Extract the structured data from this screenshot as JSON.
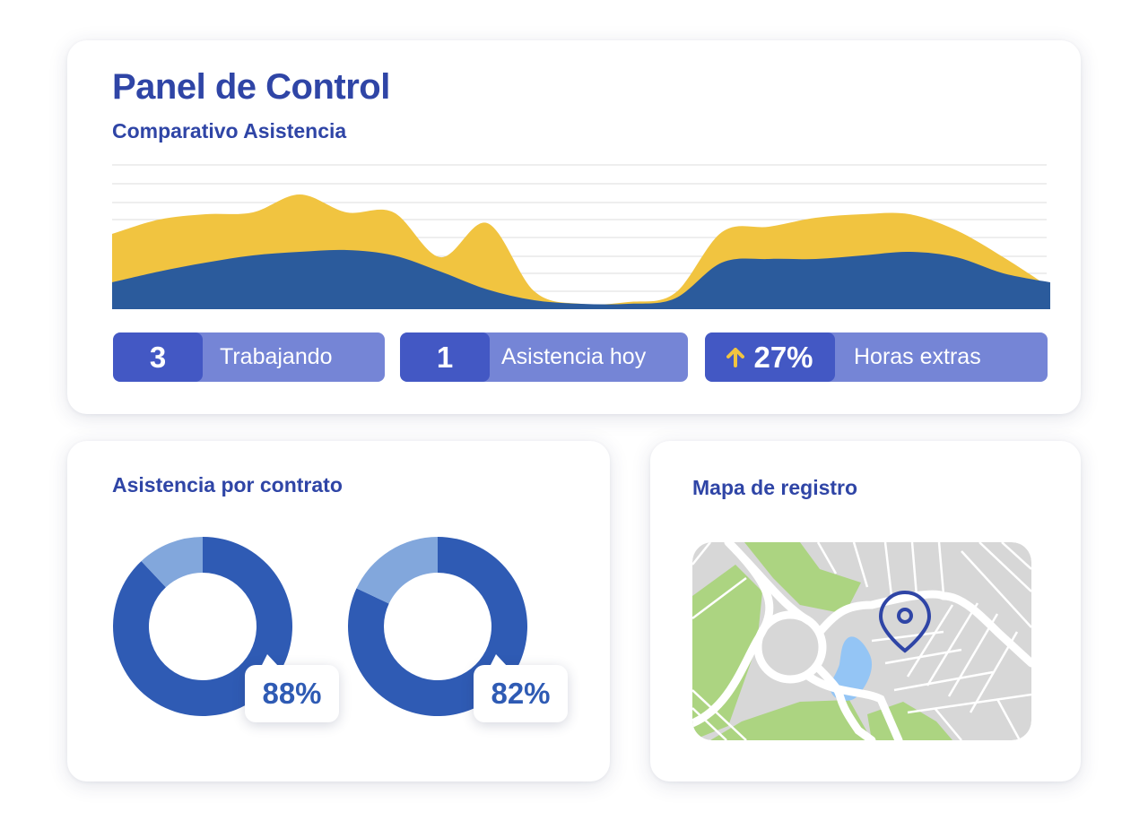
{
  "dashboard": {
    "title": "Panel de Control",
    "chart_title": "Comparativo Asistencia"
  },
  "chart_data": {
    "type": "area",
    "title": "Comparativo Asistencia",
    "x": [
      0,
      1,
      2,
      3,
      4,
      5,
      6,
      7,
      8,
      9,
      10,
      11,
      12,
      13,
      14,
      15,
      16,
      17,
      18,
      19,
      20
    ],
    "series": [
      {
        "color": "#f1c440",
        "values": [
          4.2,
          5.0,
          5.3,
          5.4,
          6.4,
          5.4,
          5.4,
          2.9,
          4.8,
          1.0,
          0.3,
          0.4,
          0.9,
          4.3,
          4.6,
          5.1,
          5.3,
          5.3,
          4.4,
          2.9,
          1.2
        ]
      },
      {
        "color": "#2b5b9c",
        "values": [
          1.5,
          2.1,
          2.6,
          3.0,
          3.2,
          3.3,
          3.0,
          2.1,
          1.1,
          0.5,
          0.3,
          0.3,
          0.6,
          2.6,
          2.8,
          2.8,
          3.0,
          3.2,
          2.9,
          2.0,
          1.5
        ]
      }
    ],
    "ylim": [
      0,
      8
    ],
    "grid": true
  },
  "stats": [
    {
      "value": "3",
      "label": "Trabajando"
    },
    {
      "value": "1",
      "label": "Asistencia hoy"
    },
    {
      "value": "27%",
      "label": "Horas extras",
      "icon": "arrow-up-icon",
      "icon_color": "#f1c440"
    }
  ],
  "contracts": {
    "title": "Asistencia por contrato",
    "donuts": [
      {
        "percent": 88,
        "label": "88%"
      },
      {
        "percent": 82,
        "label": "82%"
      }
    ],
    "colors": {
      "primary": "#2f5bb4",
      "secondary": "#82a7dc"
    }
  },
  "map": {
    "title": "Mapa de registro",
    "icon": "location-pin-icon"
  }
}
